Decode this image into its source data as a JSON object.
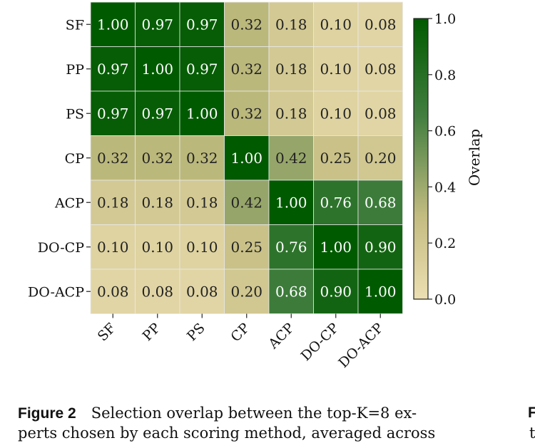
{
  "chart_data": {
    "type": "heatmap",
    "rows": [
      "SF",
      "PP",
      "PS",
      "CP",
      "ACP",
      "DO-CP",
      "DO-ACP"
    ],
    "cols": [
      "SF",
      "PP",
      "PS",
      "CP",
      "ACP",
      "DO-CP",
      "DO-ACP"
    ],
    "values": [
      [
        1.0,
        0.97,
        0.97,
        0.32,
        0.18,
        0.1,
        0.08
      ],
      [
        0.97,
        1.0,
        0.97,
        0.32,
        0.18,
        0.1,
        0.08
      ],
      [
        0.97,
        0.97,
        1.0,
        0.32,
        0.18,
        0.1,
        0.08
      ],
      [
        0.32,
        0.32,
        0.32,
        1.0,
        0.42,
        0.25,
        0.2
      ],
      [
        0.18,
        0.18,
        0.18,
        0.42,
        1.0,
        0.76,
        0.68
      ],
      [
        0.1,
        0.1,
        0.1,
        0.25,
        0.76,
        1.0,
        0.9
      ],
      [
        0.08,
        0.08,
        0.08,
        0.2,
        0.68,
        0.9,
        1.0
      ]
    ],
    "value_format": "2-decimals",
    "colorbar": {
      "label": "Overlap",
      "range": [
        0.0,
        1.0
      ],
      "ticks": [
        "0.0",
        "0.2",
        "0.4",
        "0.6",
        "0.8",
        "1.0"
      ],
      "tick_values": [
        0.0,
        0.2,
        0.4,
        0.6,
        0.8,
        1.0
      ],
      "colors": [
        "#ecdfb2",
        "#c2bb80",
        "#437e40",
        "#005a00"
      ]
    },
    "title": "",
    "xlabel": "",
    "ylabel": ""
  },
  "caption": {
    "label": "Figure 2",
    "line1": "Selection overlap between the top-K=8 ex-",
    "line2": "perts chosen by each scoring method, averaged across"
  },
  "edge_text": {
    "label_fragment": "F",
    "line2_fragment": "t"
  }
}
